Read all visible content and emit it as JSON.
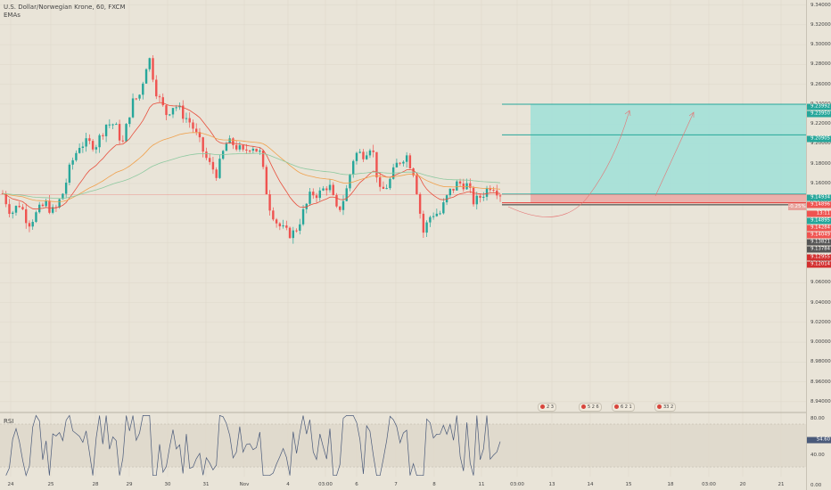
{
  "header": {
    "symbol_line": "U.S. Dollar/Norwegian Krone, 60, FXCM",
    "indicator": "EMAs"
  },
  "rsi_panel": {
    "title": "RSI"
  },
  "price_scale": {
    "ticks": [
      "9.34000",
      "9.32000",
      "9.30000",
      "9.28000",
      "9.26000",
      "9.24000",
      "9.22000",
      "9.20000",
      "9.18000",
      "9.16000",
      "9.14000",
      "9.12000",
      "9.10000",
      "9.08000",
      "9.06000",
      "9.04000",
      "9.02000",
      "9.00000",
      "8.98000",
      "8.96000",
      "8.94000"
    ],
    "labels": [
      {
        "text": "9.23992",
        "color": "#26a69a"
      },
      {
        "text": "9.23950",
        "color": "#26a69a"
      },
      {
        "text": "9.20905",
        "color": "#26a69a"
      },
      {
        "text": "9.14934",
        "color": "#26a69a"
      },
      {
        "text": "9.14896",
        "color": "#ef5350"
      },
      {
        "text": "13:11",
        "color": "#ef5350"
      },
      {
        "text": "9.14895",
        "color": "#26a69a"
      },
      {
        "text": "9.14284",
        "color": "#ef5350"
      },
      {
        "text": "9.14049",
        "color": "#ef5350"
      },
      {
        "text": "9.13821",
        "color": "#555555"
      },
      {
        "text": "9.13784",
        "color": "#555555"
      },
      {
        "text": "9.12955",
        "color": "#d32f2f"
      },
      {
        "text": "9.12014",
        "color": "#d32f2f"
      }
    ]
  },
  "rsi_scale": {
    "ticks": [
      "80.00",
      "40.00",
      "0.00"
    ],
    "value_label": "54.60"
  },
  "position_tag": "-0.25%",
  "time_axis": [
    "24",
    "25",
    "28",
    "29",
    "30",
    "31",
    "Nov",
    "4",
    "03:00",
    "6",
    "7",
    "8",
    "11",
    "03:00",
    "13",
    "14",
    "15",
    "18",
    "03:00",
    "20",
    "21"
  ],
  "events": [
    "2 3",
    "5 2 6",
    "6 2 1",
    "33 2"
  ],
  "colors": {
    "up": "#26a69a",
    "down": "#ef5350",
    "profit": "#9fe0d8",
    "loss": "#eba7a3",
    "rsi": "#4a5a7a"
  },
  "chart_data": {
    "type": "candlestick",
    "title": "U.S. Dollar/Norwegian Krone, 60, FXCM",
    "ylim": [
      8.93,
      9.345
    ],
    "series": [
      {
        "name": "Price",
        "close_path": [
          9.15,
          9.13,
          9.14,
          9.12,
          9.13,
          9.14,
          9.13,
          9.15,
          9.18,
          9.2,
          9.2,
          9.2,
          9.22,
          9.22,
          9.2,
          9.24,
          9.25,
          9.29,
          9.25,
          9.23,
          9.24,
          9.23,
          9.22,
          9.2,
          9.18,
          9.17,
          9.2,
          9.2,
          9.19,
          9.2,
          9.19,
          9.14,
          9.12,
          9.11,
          9.11,
          9.13,
          9.15,
          9.15,
          9.16,
          9.13,
          9.15,
          9.19,
          9.19,
          9.2,
          9.15,
          9.16,
          9.18,
          9.19,
          9.17,
          9.11,
          9.13,
          9.13,
          9.15,
          9.16,
          9.16,
          9.14,
          9.15,
          9.16,
          9.15
        ]
      },
      {
        "name": "EMAs",
        "values": []
      },
      {
        "name": "RSI",
        "values": []
      }
    ],
    "levels": {
      "take_profit": 9.23992,
      "target_2": 9.20905,
      "entry": 9.14934,
      "current": 9.14896,
      "stop": 9.14049
    }
  }
}
